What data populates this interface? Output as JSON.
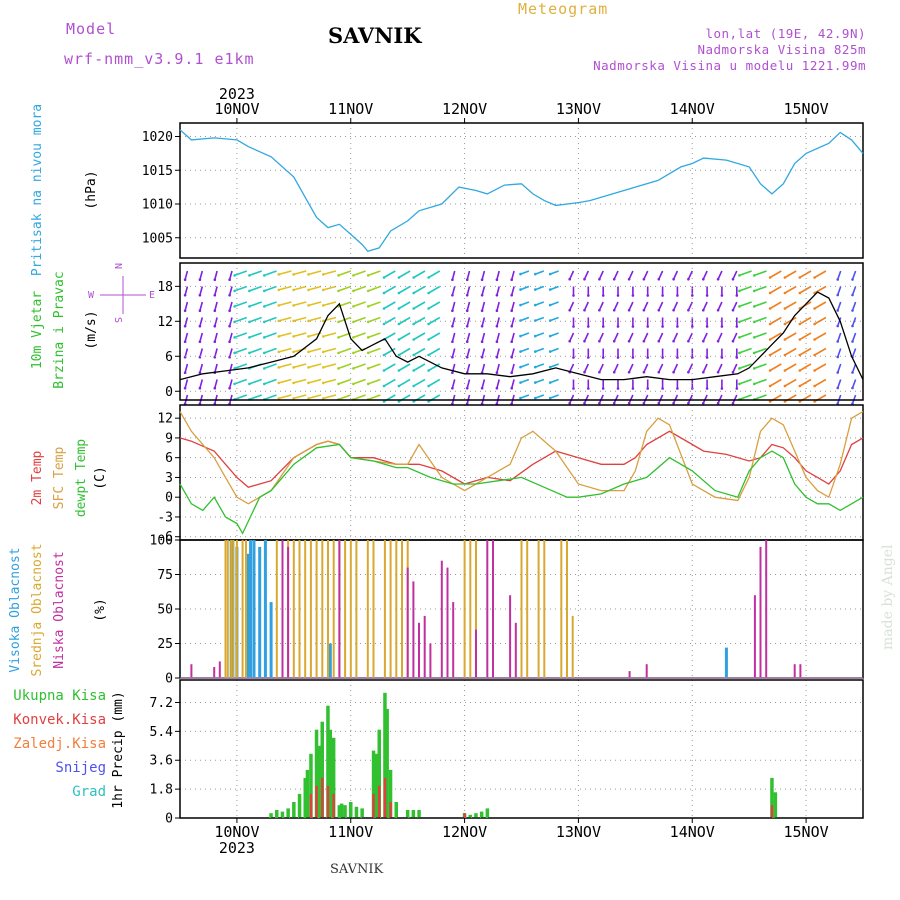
{
  "header": {
    "model_label": "Model",
    "model_name": "wrf-nmm_v3.9.1 e1km",
    "station": "SAVNIK",
    "title": "Meteogram",
    "location_lines": [
      "lon,lat (19E, 42.9N)",
      "Nadmorska Visina 825m",
      "Nadmorska Visina u modelu 1221.99m"
    ]
  },
  "footer": {
    "station": "SAVNIK"
  },
  "watermark": "made by Angel",
  "time_axis": {
    "year": "2023",
    "days": [
      "10NOV",
      "11NOV",
      "12NOV",
      "13NOV",
      "14NOV",
      "15NOV"
    ],
    "range_days": [
      9.5,
      15.5
    ]
  },
  "wind_compass": {
    "n": "N",
    "s": "S",
    "e": "E",
    "w": "W"
  },
  "colors": {
    "pressure": "#30a8e0",
    "temp2m": "#e04040",
    "sfc": "#d8a040",
    "dew": "#30c030",
    "high": "#30a0e0",
    "mid": "#d8a830",
    "low": "#c030a0",
    "precip_total": "#30c030",
    "precip_conv": "#e04040"
  },
  "chart_data": [
    {
      "type": "line",
      "ylabel": [
        "Pritisak na nivou mora",
        "(hPa)"
      ],
      "ylim": [
        1002,
        1022
      ],
      "yticks": [
        1005,
        1010,
        1015,
        1020
      ],
      "series": [
        {
          "x": [
            9.5,
            9.6,
            9.8,
            10.0,
            10.1,
            10.3,
            10.5,
            10.6,
            10.7,
            10.8,
            10.9,
            11.0,
            11.1,
            11.15,
            11.25,
            11.35,
            11.5,
            11.6,
            11.7,
            11.8,
            11.95,
            12.1,
            12.2,
            12.35,
            12.5,
            12.6,
            12.7,
            12.8,
            13.0,
            13.1,
            13.3,
            13.5,
            13.7,
            13.9,
            14.0,
            14.1,
            14.3,
            14.5,
            14.6,
            14.7,
            14.8,
            14.9,
            15.0,
            15.2,
            15.3,
            15.4,
            15.5
          ],
          "values": [
            1021,
            1019.5,
            1019.8,
            1019.5,
            1018.5,
            1017,
            1014,
            1011,
            1008,
            1006.5,
            1007,
            1005.5,
            1004,
            1003,
            1003.5,
            1006,
            1007.5,
            1009,
            1009.5,
            1010,
            1012.5,
            1012,
            1011.5,
            1012.8,
            1013,
            1011.5,
            1010.5,
            1009.8,
            1010.2,
            1010.5,
            1011.5,
            1012.5,
            1013.5,
            1015.5,
            1016,
            1016.8,
            1016.5,
            1015.5,
            1013,
            1011.5,
            1013,
            1016,
            1017.5,
            1019,
            1020.6,
            1019.5,
            1017.5
          ]
        }
      ]
    },
    {
      "type": "line",
      "ylabel": [
        "10m Vjetar",
        "Brzina i Pravac",
        "(m/s)"
      ],
      "ylim": [
        -1.5,
        22
      ],
      "yticks": [
        0,
        6,
        12,
        18
      ],
      "series": [
        {
          "x": [
            9.5,
            9.7,
            9.9,
            10.1,
            10.3,
            10.5,
            10.6,
            10.7,
            10.8,
            10.9,
            11.0,
            11.1,
            11.2,
            11.3,
            11.4,
            11.5,
            11.6,
            11.8,
            12.0,
            12.2,
            12.4,
            12.6,
            12.8,
            13.0,
            13.2,
            13.4,
            13.6,
            13.8,
            14.0,
            14.2,
            14.4,
            14.5,
            14.6,
            14.7,
            14.8,
            14.9,
            15.0,
            15.1,
            15.2,
            15.3,
            15.4,
            15.5
          ],
          "values": [
            2,
            3,
            3.5,
            4,
            5,
            6,
            7.5,
            9,
            13,
            15,
            9,
            7,
            8,
            9,
            6,
            5,
            6,
            4,
            3,
            3,
            2.5,
            3,
            4,
            3,
            2,
            2,
            2.5,
            2,
            2,
            2.5,
            3,
            4,
            6,
            8,
            10,
            13,
            15,
            17,
            16,
            12,
            6,
            2
          ]
        }
      ]
    },
    {
      "type": "line",
      "ylabel": [
        "2m Temp",
        "SFC Temp",
        "dewpt Temp",
        "(C)"
      ],
      "ylim": [
        -6.5,
        14
      ],
      "yticks": [
        -6,
        -3,
        0,
        3,
        6,
        9,
        12
      ],
      "series": [
        {
          "name": "2m Temp",
          "x": [
            9.5,
            9.6,
            9.8,
            9.9,
            10.0,
            10.1,
            10.2,
            10.3,
            10.5,
            10.7,
            10.8,
            10.9,
            11.0,
            11.2,
            11.4,
            11.5,
            11.6,
            11.8,
            12.0,
            12.2,
            12.4,
            12.6,
            12.8,
            13.0,
            13.2,
            13.4,
            13.5,
            13.6,
            13.8,
            14.0,
            14.1,
            14.3,
            14.5,
            14.6,
            14.7,
            14.8,
            14.9,
            15.0,
            15.1,
            15.2,
            15.3,
            15.4,
            15.5
          ],
          "values": [
            9,
            8.5,
            7,
            5,
            3,
            1.5,
            2,
            2.5,
            6,
            8,
            8.5,
            8,
            6,
            6,
            5,
            5,
            5,
            4,
            2,
            3,
            2.5,
            5,
            7,
            6,
            5,
            5,
            6,
            8,
            10,
            8,
            7,
            6.5,
            5.5,
            6,
            8,
            7.5,
            6,
            4,
            3,
            2,
            4,
            8,
            9
          ]
        },
        {
          "name": "SFC Temp",
          "x": [
            9.5,
            9.6,
            9.8,
            9.9,
            10.0,
            10.1,
            10.2,
            10.3,
            10.5,
            10.7,
            10.8,
            10.9,
            11.0,
            11.2,
            11.4,
            11.5,
            11.6,
            11.8,
            12.0,
            12.2,
            12.4,
            12.5,
            12.6,
            12.8,
            13.0,
            13.2,
            13.4,
            13.5,
            13.6,
            13.7,
            13.8,
            14.0,
            14.2,
            14.4,
            14.5,
            14.6,
            14.7,
            14.8,
            14.9,
            15.0,
            15.1,
            15.2,
            15.3,
            15.4,
            15.5
          ],
          "values": [
            13,
            10,
            6,
            3,
            0,
            -1,
            0,
            1,
            6,
            8,
            8.5,
            8,
            6,
            5.5,
            5,
            5,
            8,
            3,
            1,
            3,
            5,
            9,
            10,
            7,
            2,
            1,
            1,
            4,
            10,
            12,
            11,
            2,
            0,
            -0.5,
            3,
            10,
            12,
            11,
            7,
            3,
            1,
            0,
            5,
            12,
            13
          ]
        },
        {
          "name": "dewpt Temp",
          "x": [
            9.5,
            9.6,
            9.7,
            9.8,
            9.9,
            10.0,
            10.05,
            10.2,
            10.3,
            10.5,
            10.7,
            10.9,
            11.0,
            11.2,
            11.4,
            11.5,
            11.7,
            11.9,
            12.1,
            12.3,
            12.5,
            12.7,
            12.9,
            13.0,
            13.2,
            13.4,
            13.6,
            13.8,
            14.0,
            14.2,
            14.4,
            14.5,
            14.6,
            14.7,
            14.8,
            14.9,
            15.0,
            15.1,
            15.2,
            15.3,
            15.4,
            15.5
          ],
          "values": [
            2,
            -1,
            -2,
            0,
            -3,
            -4,
            -5.5,
            0,
            1,
            5,
            7.5,
            8,
            6,
            5.5,
            4.5,
            4.5,
            3,
            2,
            2,
            2.5,
            3,
            1.5,
            0,
            0,
            0.5,
            2,
            3,
            6,
            4,
            1,
            0,
            4,
            6,
            7,
            6,
            2,
            0,
            -1,
            -1,
            -2,
            -1,
            0
          ]
        }
      ]
    },
    {
      "type": "bar",
      "ylabel": [
        "Visoka Oblacnost",
        "Srednja Oblacnost",
        "Niska Oblacnost",
        "(%)"
      ],
      "ylim": [
        0,
        100
      ],
      "yticks": [
        0,
        25,
        50,
        75,
        100
      ],
      "series": [
        {
          "name": "Visoka",
          "x": [
            9.95,
            10.0,
            10.1,
            10.12,
            10.15,
            10.2,
            10.25,
            10.3,
            10.82,
            14.3
          ],
          "values": [
            100,
            95,
            90,
            100,
            100,
            95,
            100,
            55,
            25,
            22
          ]
        },
        {
          "name": "Srednja",
          "x": [
            9.9,
            9.92,
            9.95,
            9.97,
            10.0,
            10.05,
            10.08,
            10.35,
            10.45,
            10.5,
            10.55,
            10.6,
            10.65,
            10.7,
            10.75,
            10.8,
            10.85,
            10.9,
            10.95,
            11.0,
            11.05,
            11.15,
            11.2,
            11.3,
            11.35,
            11.4,
            11.45,
            11.5,
            12.0,
            12.05,
            12.1,
            12.5,
            12.55,
            12.65,
            12.7,
            12.85,
            12.9,
            12.95
          ],
          "values": [
            100,
            100,
            100,
            100,
            100,
            100,
            100,
            100,
            100,
            100,
            100,
            100,
            100,
            100,
            100,
            100,
            100,
            100,
            100,
            100,
            100,
            100,
            100,
            100,
            100,
            100,
            100,
            100,
            100,
            100,
            100,
            100,
            100,
            100,
            100,
            100,
            100,
            45
          ]
        },
        {
          "name": "Niska",
          "x": [
            9.6,
            9.8,
            9.85,
            10.4,
            10.45,
            10.9,
            11.5,
            11.55,
            11.6,
            11.65,
            11.7,
            11.8,
            11.85,
            11.9,
            12.1,
            12.2,
            12.25,
            12.4,
            12.45,
            13.45,
            13.6,
            14.55,
            14.6,
            14.65,
            14.9,
            14.95
          ],
          "values": [
            10,
            8,
            12,
            100,
            95,
            100,
            80,
            70,
            40,
            45,
            25,
            85,
            80,
            55,
            35,
            100,
            100,
            60,
            40,
            5,
            10,
            60,
            95,
            100,
            10,
            10
          ]
        }
      ]
    },
    {
      "type": "bar",
      "ylabel": [
        "Ukupna Kisa",
        "Konvek.Kisa",
        "Zaledj.Kisa",
        "Snijeg",
        "Grad",
        "1hr Precip (mm)"
      ],
      "ylim": [
        0,
        8.6
      ],
      "yticks": [
        0,
        1.8,
        3.6,
        5.4,
        7.2
      ],
      "series": [
        {
          "name": "Ukupna Kisa",
          "x": [
            10.3,
            10.35,
            10.4,
            10.45,
            10.5,
            10.55,
            10.6,
            10.62,
            10.65,
            10.7,
            10.72,
            10.75,
            10.8,
            10.82,
            10.85,
            10.9,
            10.92,
            10.95,
            11.0,
            11.05,
            11.1,
            11.2,
            11.22,
            11.25,
            11.3,
            11.32,
            11.35,
            11.4,
            11.5,
            11.55,
            11.6,
            12.0,
            12.05,
            12.1,
            12.15,
            12.2,
            14.7,
            14.73
          ],
          "values": [
            0.3,
            0.5,
            0.4,
            0.6,
            1.0,
            1.5,
            2.5,
            3.0,
            4.0,
            5.5,
            4.5,
            6.0,
            7.0,
            5.5,
            5.0,
            0.8,
            0.9,
            0.8,
            1.0,
            0.7,
            0.6,
            4.2,
            4.0,
            5.5,
            7.8,
            6.8,
            3.0,
            1.0,
            0.5,
            0.5,
            0.5,
            0.3,
            0.2,
            0.3,
            0.4,
            0.6,
            2.5,
            1.6
          ]
        },
        {
          "name": "Konvek.Kisa",
          "x": [
            10.65,
            10.7,
            10.75,
            10.8,
            10.85,
            11.2,
            11.25,
            11.3,
            11.35,
            12.0,
            14.7
          ],
          "values": [
            1.5,
            2.0,
            2.5,
            2.0,
            1.5,
            1.5,
            2.0,
            2.5,
            1.0,
            0.3,
            0.8
          ]
        }
      ]
    }
  ]
}
